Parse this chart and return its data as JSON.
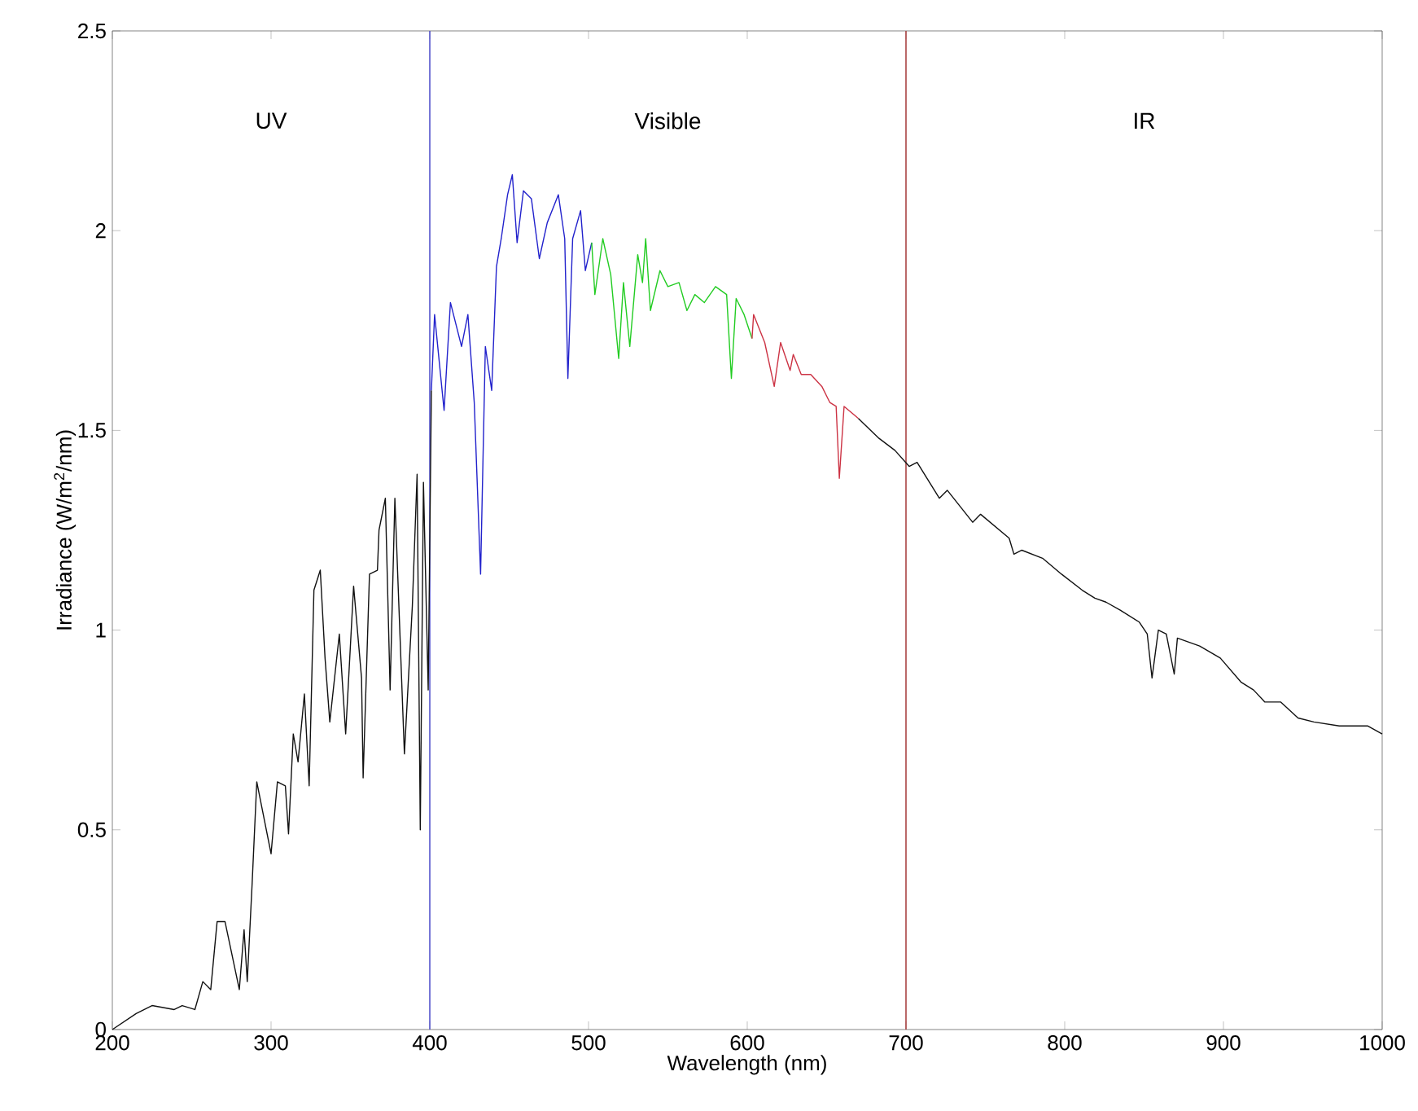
{
  "chart_data": {
    "type": "line",
    "xlabel": "Wavelength (nm)",
    "ylabel": "Irradiance (W/m$^{2}$/nm)",
    "xlim": [
      200,
      1000
    ],
    "ylim": [
      0,
      2.5
    ],
    "xticks": [
      200,
      300,
      400,
      500,
      600,
      700,
      800,
      900,
      1000
    ],
    "yticks": [
      0,
      0.5,
      1,
      1.5,
      2,
      2.5
    ],
    "grid": false,
    "marker": "none",
    "line_style": "solid",
    "ref_lines": [
      {
        "axis": "x",
        "value": 400,
        "color": "#5555cc"
      },
      {
        "axis": "x",
        "value": 700,
        "color": "#aa4444"
      }
    ],
    "annotations": [
      "UV",
      "Visible",
      "IR"
    ],
    "series": [
      {
        "color": "#111111",
        "x": [
          200,
          215,
          225,
          239,
          244,
          252,
          257,
          262,
          266,
          271,
          280,
          283,
          285,
          288,
          291,
          295,
          300,
          304,
          309,
          311,
          314,
          317,
          321,
          324,
          327,
          331,
          334,
          337,
          343,
          347,
          352,
          357,
          358,
          362,
          367,
          368,
          372,
          375,
          378,
          384,
          389,
          392,
          394,
          396,
          399,
          401
        ],
        "values": [
          0.0,
          0.04,
          0.06,
          0.05,
          0.06,
          0.05,
          0.12,
          0.1,
          0.27,
          0.27,
          0.1,
          0.25,
          0.12,
          0.36,
          0.62,
          0.54,
          0.44,
          0.62,
          0.61,
          0.49,
          0.74,
          0.67,
          0.84,
          0.61,
          1.1,
          1.15,
          0.93,
          0.77,
          0.99,
          0.74,
          1.11,
          0.88,
          0.63,
          1.14,
          1.15,
          1.25,
          1.33,
          0.85,
          1.33,
          0.69,
          1.06,
          1.39,
          0.5,
          1.37,
          0.85,
          1.6
        ]
      },
      {
        "color": "#2222cc",
        "x": [
          401,
          403,
          409,
          413,
          420,
          424,
          428,
          432,
          435,
          439,
          442,
          445,
          449,
          452,
          455,
          459,
          464,
          469,
          474,
          481,
          485,
          487,
          490,
          495,
          498,
          502
        ],
        "values": [
          1.6,
          1.79,
          1.55,
          1.82,
          1.71,
          1.79,
          1.57,
          1.14,
          1.71,
          1.6,
          1.91,
          1.98,
          2.09,
          2.14,
          1.97,
          2.1,
          2.08,
          1.93,
          2.02,
          2.09,
          1.98,
          1.63,
          1.98,
          2.05,
          1.9,
          1.97
        ]
      },
      {
        "color": "#22cc22",
        "x": [
          502,
          504,
          509,
          514,
          519,
          522,
          526,
          531,
          534,
          536,
          539,
          545,
          550,
          557,
          562,
          567,
          573,
          580,
          587,
          590,
          593,
          598,
          603
        ],
        "values": [
          1.97,
          1.84,
          1.98,
          1.89,
          1.68,
          1.87,
          1.71,
          1.94,
          1.87,
          1.98,
          1.8,
          1.9,
          1.86,
          1.87,
          1.8,
          1.84,
          1.82,
          1.86,
          1.84,
          1.63,
          1.83,
          1.79,
          1.73
        ]
      },
      {
        "color": "#cc3344",
        "x": [
          603,
          604,
          611,
          617,
          621,
          627,
          629,
          634,
          640,
          647,
          652,
          656,
          658,
          661,
          670
        ],
        "values": [
          1.73,
          1.79,
          1.72,
          1.61,
          1.72,
          1.65,
          1.69,
          1.64,
          1.64,
          1.61,
          1.57,
          1.56,
          1.38,
          1.56,
          1.53
        ]
      },
      {
        "color": "#111111",
        "x": [
          670,
          683,
          693,
          702,
          707,
          721,
          726,
          742,
          747,
          765,
          768,
          773,
          786,
          798,
          811,
          819,
          826,
          835,
          847,
          852,
          855,
          859,
          864,
          869,
          871,
          885,
          898,
          911,
          919,
          926,
          936,
          947,
          957,
          973,
          991,
          1000
        ],
        "values": [
          1.53,
          1.48,
          1.45,
          1.41,
          1.42,
          1.33,
          1.35,
          1.27,
          1.29,
          1.23,
          1.19,
          1.2,
          1.18,
          1.14,
          1.1,
          1.08,
          1.07,
          1.05,
          1.02,
          0.99,
          0.88,
          1.0,
          0.99,
          0.89,
          0.98,
          0.96,
          0.93,
          0.87,
          0.85,
          0.82,
          0.82,
          0.78,
          0.77,
          0.76,
          0.76,
          0.74
        ]
      }
    ]
  }
}
